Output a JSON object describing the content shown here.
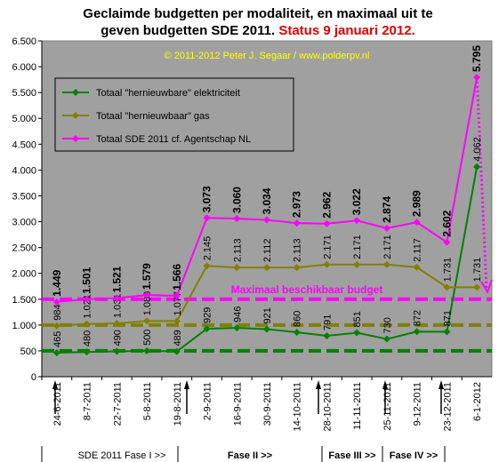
{
  "chart_data": {
    "type": "line",
    "title": [
      "Geclaimde budgetten per modaliteit, en maximaal uit te",
      "geven budgetten SDE 2011."
    ],
    "status": "Status 9 januari 2012.",
    "subtitle": "© 2011-2012 Peter J. Segaar / www.polderpv.nl",
    "categories": [
      "24-6-2011",
      "8-7-2011",
      "22-7-2011",
      "5-8-2011",
      "19-8-2011",
      "2-9-2011",
      "16-9-2011",
      "30-9-2011",
      "14-10-2011",
      "28-10-2011",
      "11-11-2011",
      "25-11-2011",
      "9-12-2011",
      "23-12-2011",
      "6-1-2012"
    ],
    "series": [
      {
        "name": "Totaal \"hernieuwbare\" elektriciteit",
        "color": "#008000",
        "values": [
          465,
          480,
          490,
          500,
          489,
          929,
          946,
          921,
          860,
          791,
          851,
          730,
          872,
          871,
          4062
        ],
        "value_labels": [
          "465",
          "480",
          "490",
          "500",
          "489",
          "929",
          "946",
          "921",
          "860",
          "791",
          "851",
          "730",
          "872",
          "871",
          "4.062"
        ]
      },
      {
        "name": "Totaal \"hernieuwbaar\" gas",
        "color": "#808000",
        "values": [
          984,
          1021,
          1031,
          1080,
          1077,
          2145,
          2113,
          2112,
          2113,
          2171,
          2171,
          2171,
          2117,
          1731,
          1731
        ],
        "value_labels": [
          "984",
          "1.021",
          "1.031",
          "1.080",
          "1.077",
          "2.145",
          "2.113",
          "2.112",
          "2.113",
          "2.171",
          "2.171",
          "2.171",
          "2.117",
          "1.731",
          "1.731"
        ]
      },
      {
        "name": "Totaal SDE 2011 cf. Agentschap NL",
        "color": "#ff00ff",
        "values": [
          1449,
          1501,
          1521,
          1579,
          1566,
          3073,
          3060,
          3034,
          2973,
          2962,
          3022,
          2874,
          2989,
          2602,
          5795
        ],
        "value_labels": [
          "1.449",
          "1.501",
          "1.521",
          "1.579",
          "1.566",
          "3.073",
          "3.060",
          "3.034",
          "2.973",
          "2.962",
          "3.022",
          "2.874",
          "2.989",
          "2.602",
          "5.795"
        ]
      }
    ],
    "reference_lines": [
      {
        "value": 1500,
        "color": "#ff00ff",
        "label": "Maximaal beschikbaar budget"
      },
      {
        "value": 1000,
        "color": "#808000"
      },
      {
        "value": 500,
        "color": "#008000"
      }
    ],
    "phases": [
      "SDE 2011 Fase I >>",
      "Fase II >>",
      "Fase III >>",
      "Fase IV >>"
    ],
    "ylim": [
      0,
      6500
    ],
    "yticks": [
      0,
      500,
      {
        "value": 1000,
        "label": "1.000"
      },
      {
        "value": 1500,
        "label": "1.500"
      },
      {
        "value": 2000,
        "label": "2.000"
      },
      {
        "value": 2500,
        "label": "2.500"
      },
      {
        "value": 3000,
        "label": "3.000"
      },
      {
        "value": 3500,
        "label": "3.500"
      },
      {
        "value": 4000,
        "label": "4.000"
      },
      {
        "value": 4500,
        "label": "4.500"
      },
      {
        "value": 5000,
        "label": "5.000"
      },
      {
        "value": 5500,
        "label": "5.500"
      },
      {
        "value": 6000,
        "label": "6.000"
      },
      {
        "value": 6500,
        "label": "6.500"
      }
    ],
    "grid": false
  }
}
